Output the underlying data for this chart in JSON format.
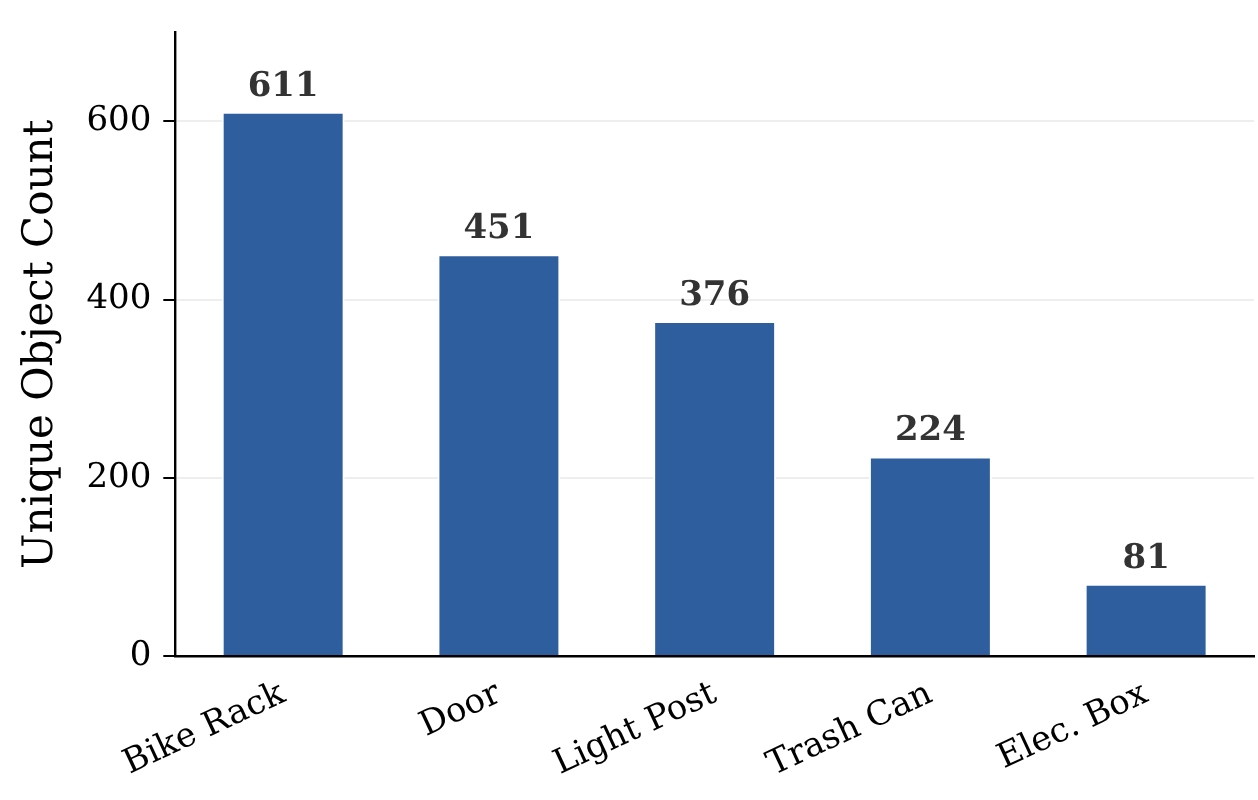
{
  "chart_data": {
    "type": "bar",
    "ylabel": "Unique Object Count",
    "categories": [
      "Bike Rack",
      "Door",
      "Light Post",
      "Trash Can",
      "Elec. Box"
    ],
    "values": [
      611,
      451,
      376,
      224,
      81
    ],
    "color": "#2e5e9e",
    "ylim": [
      0,
      700
    ],
    "yticks": [
      0,
      200,
      400,
      600
    ],
    "grid": "y",
    "data_labels": true,
    "legend": false
  }
}
